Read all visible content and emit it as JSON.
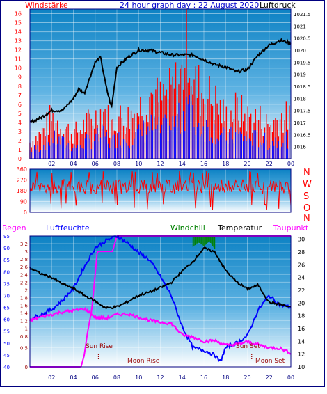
{
  "header": {
    "left_label": "Windstärke",
    "title": "24 hour graph day : 22 August 2020",
    "right_label": "Luftdruck"
  },
  "middle_labels": [
    "N",
    "W",
    "S",
    "O",
    "N"
  ],
  "bottom_labels": {
    "regen": "Regen",
    "luftfeuchte": "Luftfeuchte",
    "windchill": "Windchill",
    "temperatur": "Temperatur",
    "taupunkt": "Taupunkt"
  },
  "annotations": {
    "sun_rise": "Sun Rise",
    "moon_rise": "Moon Rise",
    "sun_set": "Sun Set",
    "moon_set": "Moon Set"
  },
  "colors": {
    "frame": "#000080",
    "title": "#0000cc",
    "windstarke": "#ff0000",
    "pressure": "#000000",
    "direction": "#ff0000",
    "regen": "#ff00ff",
    "luftfeuchte": "#0000ff",
    "windchill": "#008000",
    "temperatur": "#000000",
    "taupunkt": "#ff00ff",
    "annotation": "#990000",
    "sky_top": "#0d82c4",
    "sky_bottom": "#ffffff"
  },
  "chart_data": [
    {
      "type": "line",
      "title": "24 hour graph day : 22 August 2020",
      "x_ticks": [
        "02",
        "04",
        "06",
        "08",
        "10",
        "12",
        "14",
        "16",
        "18",
        "20",
        "22",
        "00"
      ],
      "xlim": [
        0,
        24
      ],
      "left_axis": {
        "label": "Windstärke",
        "ylim": [
          0,
          16.5
        ],
        "ticks": [
          "0",
          "1",
          "2",
          "3",
          "4",
          "5",
          "6",
          "7",
          "8",
          "9",
          "10",
          "11",
          "12",
          "13",
          "14",
          "15",
          "16"
        ]
      },
      "right_axis": {
        "label": "Luftdruck",
        "ylim": [
          1015.5,
          1021.7
        ],
        "ticks": [
          "1016",
          "1016.5",
          "1017",
          "1017.5",
          "1018",
          "1018.5",
          "1019",
          "1019.5",
          "1020",
          "1020.5",
          "1021",
          "1021.5"
        ]
      },
      "series": [
        {
          "name": "Windstärke",
          "axis": "left",
          "x": [
            0,
            1,
            2,
            3,
            4,
            5,
            6,
            6.8,
            7.5,
            8,
            9,
            10,
            11,
            12,
            13,
            14,
            14.5,
            15,
            16,
            17,
            18,
            19,
            20,
            21,
            22,
            23,
            24
          ],
          "values": [
            2,
            3,
            5,
            4,
            3,
            4,
            5,
            6,
            4,
            5,
            5,
            6,
            8,
            7,
            8,
            10,
            16.5,
            9,
            8,
            7,
            5,
            6,
            5,
            5,
            4,
            5,
            5
          ]
        },
        {
          "name": "Luftdruck",
          "axis": "right",
          "x": [
            0,
            1,
            2,
            3,
            4,
            4.5,
            5,
            6,
            6.5,
            7,
            7.5,
            8,
            9,
            10,
            11,
            12,
            13,
            14,
            15,
            16,
            17,
            18,
            19,
            20,
            21,
            22,
            23,
            24
          ],
          "values": [
            1017.0,
            1017.2,
            1017.5,
            1017.5,
            1018.0,
            1018.4,
            1018.2,
            1019.5,
            1019.7,
            1018.5,
            1017.6,
            1019.3,
            1019.7,
            1020.0,
            1020.0,
            1019.9,
            1019.8,
            1019.8,
            1019.8,
            1019.6,
            1019.4,
            1019.3,
            1019.1,
            1019.2,
            1019.8,
            1020.2,
            1020.4,
            1020.3
          ]
        }
      ]
    },
    {
      "type": "line",
      "title": "",
      "x_ticks": [
        "02",
        "04",
        "06",
        "08",
        "10",
        "12",
        "14",
        "16",
        "18",
        "20",
        "22",
        "00"
      ],
      "xlim": [
        0,
        24
      ],
      "left_axis": {
        "label": "",
        "ylim": [
          0,
          360
        ],
        "ticks": [
          "0",
          "90",
          "180",
          "270",
          "360"
        ]
      },
      "right_axis": {
        "labels": [
          "N",
          "W",
          "S",
          "O",
          "N"
        ]
      },
      "series": [
        {
          "name": "",
          "x_range": [
            0,
            24
          ],
          "mean": 215,
          "spread": 60,
          "min": 20,
          "max": 345
        }
      ]
    },
    {
      "type": "line",
      "title": "",
      "x_ticks": [
        "02",
        "04",
        "06",
        "08",
        "10",
        "12",
        "14",
        "16",
        "18",
        "20",
        "22",
        "00"
      ],
      "xlim": [
        0,
        24
      ],
      "axes": {
        "regen": {
          "label": "Regen",
          "ylim": [
            0,
            3.4
          ],
          "ticks": [
            "0",
            "0.5",
            "0.8",
            "1",
            "1.2",
            "1.4",
            "1.6",
            "1.8",
            "2",
            "2.2",
            "2.4",
            "2.6",
            "2.8",
            "3",
            "3.2"
          ]
        },
        "luftfeuchte": {
          "label": "Luftfeuchte",
          "ylim": [
            40,
            95
          ],
          "ticks": [
            "40",
            "45",
            "50",
            "55",
            "60",
            "65",
            "70",
            "75",
            "80",
            "85",
            "90",
            "95"
          ]
        },
        "temperatur": {
          "label": "Temperatur",
          "ylim": [
            10,
            30.5
          ],
          "ticks": [
            "10",
            "12",
            "14",
            "16",
            "18",
            "20",
            "22",
            "24",
            "26",
            "28",
            "30"
          ]
        }
      },
      "series": [
        {
          "name": "Regen",
          "axis": "regen",
          "x": [
            0,
            4.7,
            5,
            5.3,
            5.7,
            5.9,
            6.1,
            6.2,
            6.4,
            7.6,
            8,
            24
          ],
          "values": [
            0,
            0,
            0.3,
            0.9,
            1.5,
            2.1,
            2.7,
            3.0,
            3.0,
            3.0,
            3.4,
            3.4
          ]
        },
        {
          "name": "Luftfeuchte",
          "axis": "luftfeuchte",
          "x": [
            0,
            1,
            2,
            3,
            4,
            5,
            6,
            7,
            8,
            9,
            10,
            11,
            12,
            13,
            14,
            15,
            16,
            17,
            17.5,
            18,
            19,
            20,
            21,
            22,
            23,
            24
          ],
          "values": [
            60,
            62,
            64,
            68,
            73,
            82,
            90,
            93,
            95,
            92,
            88,
            85,
            78,
            70,
            57,
            48,
            47,
            45,
            42,
            48,
            50,
            53,
            64,
            70,
            66,
            65
          ]
        },
        {
          "name": "Temperatur",
          "axis": "temperatur",
          "x": [
            0,
            1,
            2,
            3,
            4,
            5,
            6,
            7,
            8,
            9,
            10,
            11,
            12,
            13,
            14,
            15,
            16,
            17,
            18,
            19,
            20,
            21,
            22,
            23,
            24
          ],
          "values": [
            25.5,
            24.6,
            24.0,
            23.0,
            22.3,
            21.2,
            20.3,
            19.2,
            19.4,
            20.2,
            21.2,
            21.7,
            22.4,
            23.2,
            25.0,
            26.5,
            28.6,
            28.0,
            25.1,
            23.3,
            22.2,
            22.8,
            20.1,
            19.8,
            19.3
          ]
        },
        {
          "name": "Windchill",
          "axis": "temperatur",
          "x": [
            15.0,
            15.5,
            16.0,
            16.5,
            17.0
          ],
          "values": [
            28.8,
            29.5,
            28.9,
            29.7,
            28.5
          ]
        },
        {
          "name": "Taupunkt",
          "axis": "temperatur",
          "x": [
            0,
            1,
            2,
            3,
            4,
            5,
            6,
            7,
            8,
            9,
            10,
            11,
            12,
            13,
            14,
            15,
            16,
            17,
            18,
            19,
            20,
            21,
            22,
            23,
            24
          ],
          "values": [
            17.3,
            17.8,
            18.2,
            18.6,
            18.8,
            19.1,
            17.8,
            17.6,
            18.2,
            18.3,
            17.8,
            17.3,
            17.0,
            16.8,
            15.0,
            14.7,
            14.0,
            14.1,
            13.4,
            13.5,
            13.9,
            13.5,
            13.0,
            12.9,
            12.2
          ]
        }
      ],
      "markers": [
        {
          "label": "Sun Rise",
          "x": 6.3
        },
        {
          "label": "Moon Rise",
          "x": 6.3
        },
        {
          "label": "Sun Set",
          "x": 20.4
        },
        {
          "label": "Moon Set",
          "x": 20.4
        }
      ]
    }
  ]
}
